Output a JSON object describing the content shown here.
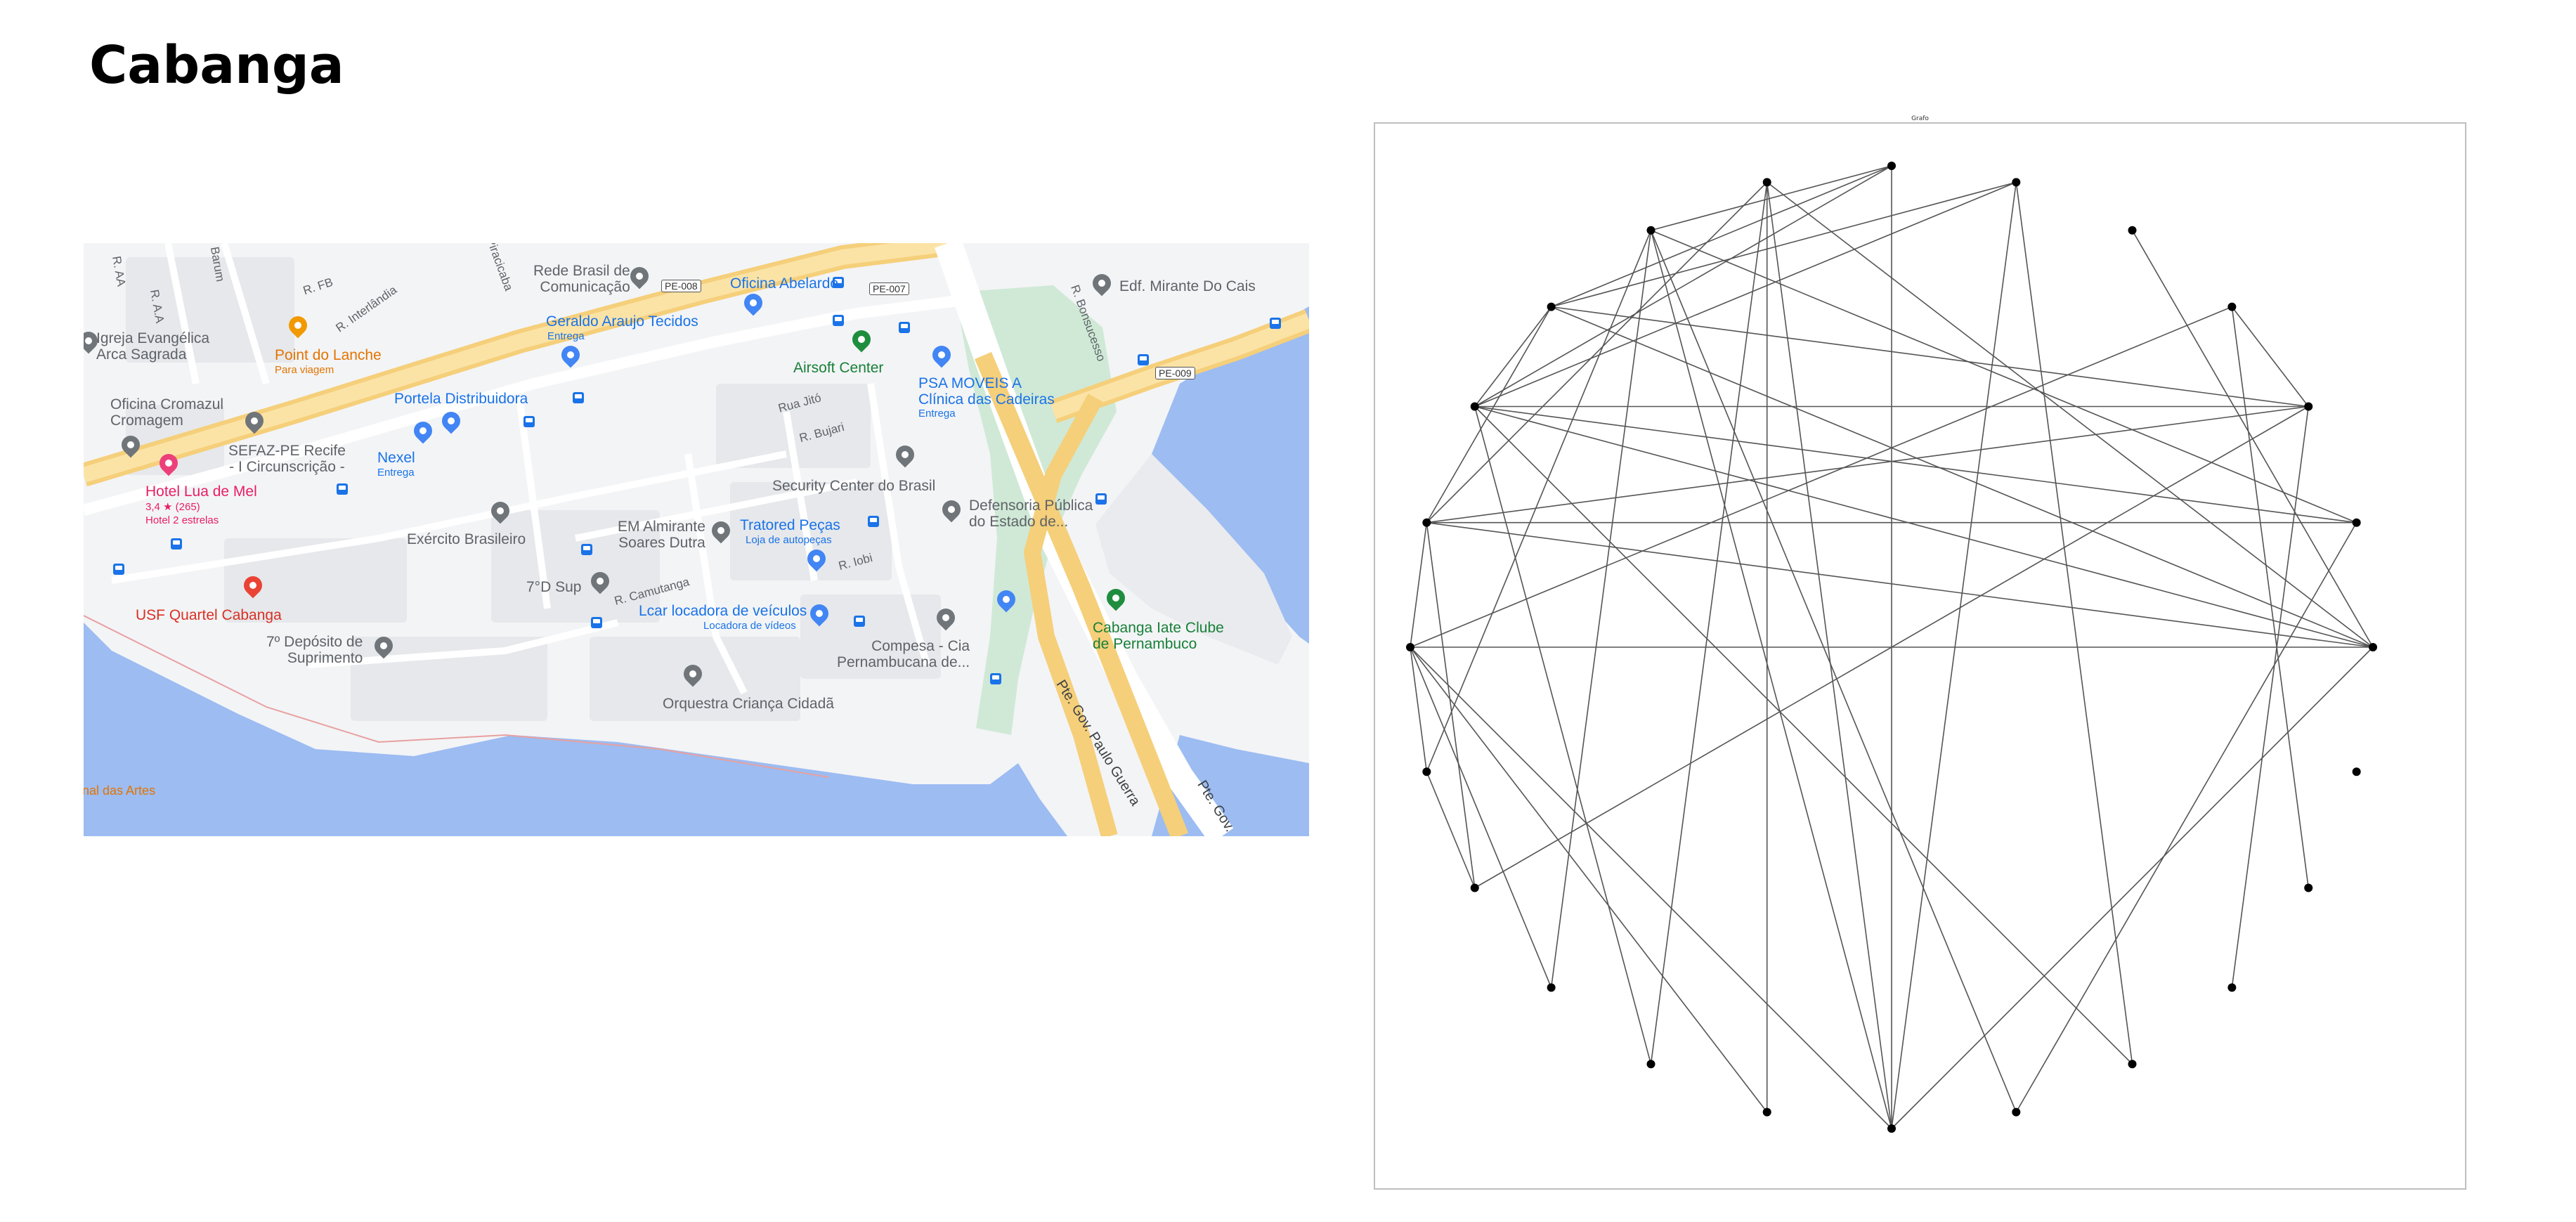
{
  "page": {
    "title": "Cabanga"
  },
  "graph": {
    "title": "Grafo",
    "layout": "circular",
    "node_count": 24,
    "edges": [
      [
        0,
        7
      ],
      [
        0,
        18
      ],
      [
        0,
        12
      ],
      [
        0,
        4
      ],
      [
        0,
        9
      ],
      [
        0,
        10
      ],
      [
        0,
        11
      ],
      [
        1,
        11
      ],
      [
        1,
        10
      ],
      [
        1,
        8
      ],
      [
        1,
        19
      ],
      [
        2,
        10
      ],
      [
        2,
        21
      ],
      [
        2,
        11
      ],
      [
        2,
        9
      ],
      [
        2,
        3
      ],
      [
        2,
        14
      ],
      [
        3,
        12
      ],
      [
        3,
        22
      ],
      [
        5,
        20
      ],
      [
        5,
        18
      ],
      [
        5,
        9
      ],
      [
        5,
        10
      ],
      [
        6,
        18
      ],
      [
        6,
        9
      ],
      [
        6,
        8
      ],
      [
        6,
        10
      ],
      [
        7,
        17
      ],
      [
        7,
        16
      ],
      [
        7,
        11
      ],
      [
        7,
        18
      ],
      [
        8,
        18
      ],
      [
        8,
        15
      ],
      [
        8,
        13
      ],
      [
        8,
        19
      ],
      [
        9,
        11
      ],
      [
        9,
        10
      ],
      [
        10,
        20
      ],
      [
        10,
        16
      ],
      [
        11,
        12
      ],
      [
        11,
        14
      ],
      [
        12,
        13
      ],
      [
        12,
        17
      ],
      [
        12,
        18
      ],
      [
        12,
        15
      ],
      [
        13,
        14
      ]
    ]
  },
  "map": {
    "places": [
      {
        "label": "Rede Brasil de",
        "label2": "Comunicação",
        "pin": "gray"
      },
      {
        "label": "Oficina Abelardo",
        "pin": "blue"
      },
      {
        "label": "Edf. Mirante Do Cais",
        "pin": "gray"
      },
      {
        "label": "Igreja Evangélica",
        "label2": "Arca Sagrada",
        "pin": "gray"
      },
      {
        "label": "Point do Lanche",
        "sub": "Para viagem",
        "pin": "orange"
      },
      {
        "label": "Geraldo Araujo Tecidos",
        "sub": "Entrega",
        "pin": "blue"
      },
      {
        "label": "Airsoft Center",
        "pin": "green"
      },
      {
        "label": "PSA MOVEIS A",
        "label2": "Clínica das Cadeiras",
        "sub": "Entrega",
        "pin": "blue"
      },
      {
        "label": "Oficina Cromazul",
        "label2": "Cromagem",
        "pin": "gray"
      },
      {
        "label": "Portela Distribuidora",
        "pin": "blue"
      },
      {
        "label": "SEFAZ-PE Recife",
        "label2": "- I Circunscrição -",
        "pin": "gray"
      },
      {
        "label": "Nexel",
        "sub": "Entrega",
        "pin": "blue"
      },
      {
        "label": "Hotel Lua de Mel",
        "sub": "3,4 ★ (265)",
        "sub2": "Hotel 2 estrelas",
        "pin": "pink"
      },
      {
        "label": "Security Center do Brasil",
        "pin": "gray"
      },
      {
        "label": "Defensoria Pública",
        "label2": "do Estado de...",
        "pin": "gray"
      },
      {
        "label": "Exército Brasileiro",
        "pin": "gray"
      },
      {
        "label": "EM Almirante",
        "label2": "Soares Dutra",
        "pin": "gray"
      },
      {
        "label": "Tratored Peças",
        "sub": "Loja de autopeças",
        "pin": "blue"
      },
      {
        "label": "USF Quartel Cabanga",
        "pin": "red"
      },
      {
        "label": "7°D Sup",
        "pin": "gray"
      },
      {
        "label": "Lcar locadora de veículos",
        "sub": "Locadora de vídeos",
        "pin": "blue"
      },
      {
        "label": "Cabanga Iate Clube",
        "label2": "de Pernambuco",
        "pin": "green"
      },
      {
        "label": "7º Depósito de",
        "label2": "Suprimento",
        "pin": "gray"
      },
      {
        "label": "Compesa - Cia",
        "label2": "Pernambucana de...",
        "pin": "gray"
      },
      {
        "label": "Orquestra Criança Cidadã",
        "pin": "gray"
      }
    ],
    "streets": [
      "R. FB",
      "R. Interlândia",
      "Rua Jitó",
      "R. Bujari",
      "R. Iobi",
      "R. Camutanga",
      "R. Bonsucesso",
      "Pte. Gov. Paulo Guerra",
      "Pte. Gov.",
      "R. A.A",
      "R. AA",
      "Barum",
      "Piracicaba"
    ],
    "route_shields": [
      "PE-008",
      "PE-007",
      "PE-009"
    ],
    "water_label": "nal das Artes"
  }
}
